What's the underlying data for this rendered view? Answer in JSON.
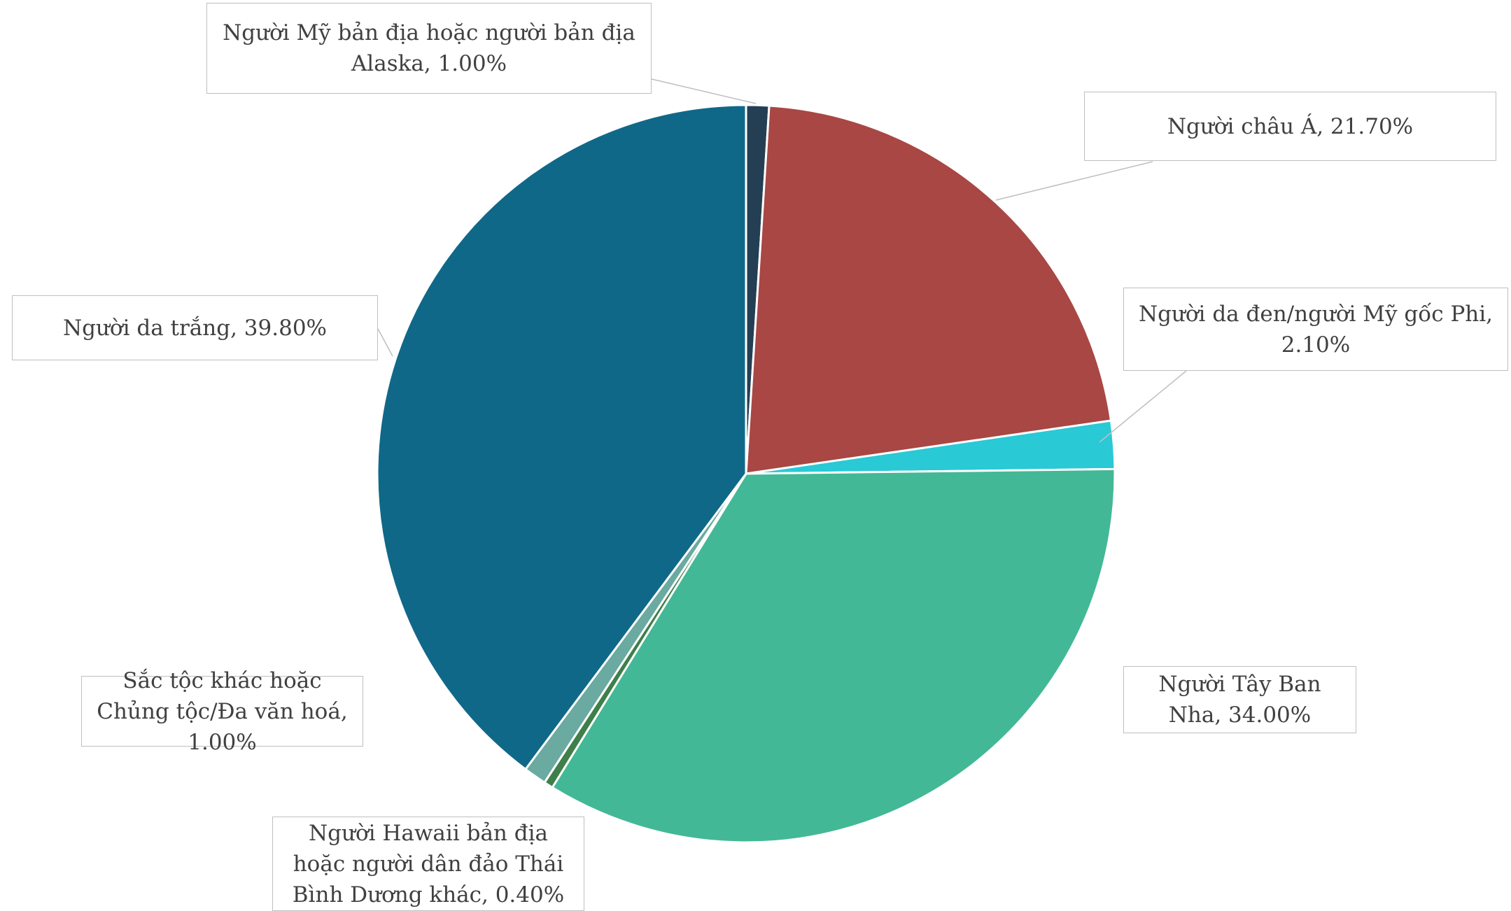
{
  "chart_data": {
    "type": "pie",
    "labels": [
      "Người Mỹ bản địa hoặc người bản địa Alaska, 1.00%",
      "Người châu Á, 21.70%",
      "Người da đen/người Mỹ gốc Phi, 2.10%",
      "Người Tây Ban Nha, 34.00%",
      "Người Hawaii bản địa hoặc người dân đảo Thái Bình Dương khác, 0.40%",
      "Sắc tộc khác hoặc Chủng tộc/Đa văn hoá, 1.00%",
      "Người da trắng, 39.80%"
    ],
    "values": [
      1.0,
      21.7,
      2.1,
      34.0,
      0.4,
      1.0,
      39.8
    ],
    "colors": [
      "#243f54",
      "#a84744",
      "#29c9d6",
      "#43b896",
      "#3f7f4a",
      "#6aaaa0",
      "#106888"
    ]
  }
}
